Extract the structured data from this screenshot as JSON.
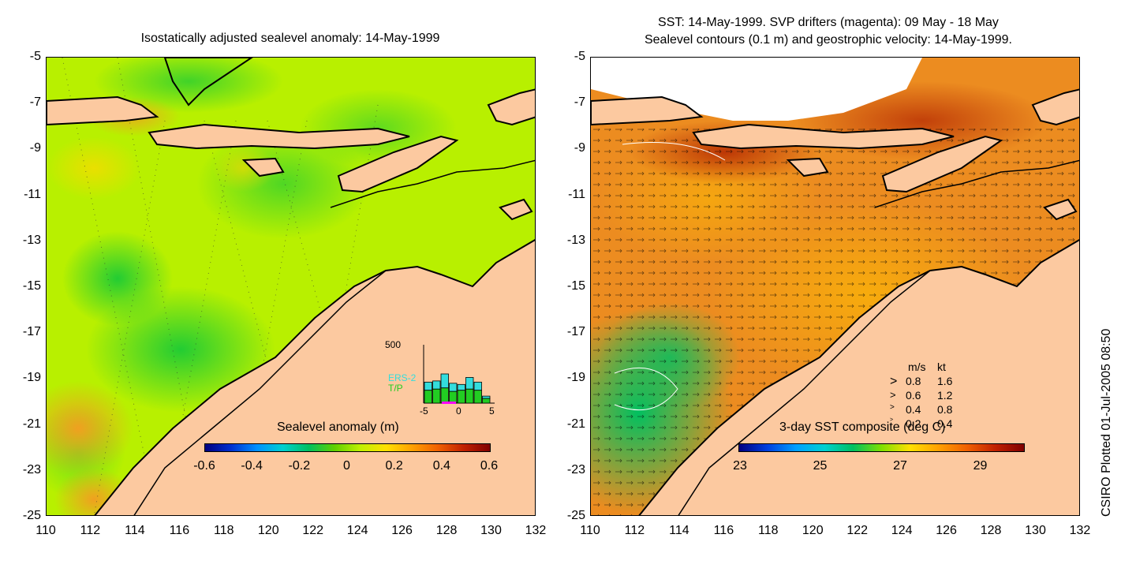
{
  "left_panel": {
    "title": "Isostatically adjusted sealevel anomaly: 14-May-1999",
    "colorbar": {
      "label": "Sealevel anomaly (m)",
      "ticks": [
        "-0.6",
        "-0.4",
        "-0.2",
        "0",
        "0.2",
        "0.4",
        "0.6"
      ]
    },
    "histogram": {
      "max_label": "500",
      "series": [
        "ERS-2",
        "T/P"
      ],
      "x_ticks": [
        "-5",
        "0",
        "5"
      ],
      "ers2_counts": [
        180,
        190,
        250,
        170,
        160,
        220,
        180,
        60
      ],
      "tp_counts": [
        110,
        120,
        130,
        100,
        110,
        120,
        110,
        40
      ],
      "colors": {
        "ers2": "#33dddd",
        "tp": "#22cc22",
        "window": "#ff00ff"
      }
    }
  },
  "right_panel": {
    "title_line1": "SST: 14-May-1999. SVP drifters (magenta): 09 May - 18 May",
    "title_line2": "Sealevel contours (0.1 m) and geostrophic velocity: 14-May-1999.",
    "colorbar": {
      "label": "3-day SST composite (deg C)",
      "ticks": [
        "23",
        "25",
        "27",
        "29"
      ]
    },
    "velocity_legend": {
      "header_ms": "m/s",
      "header_kt": "kt",
      "rows": [
        {
          "ms": "0.8",
          "kt": "1.6"
        },
        {
          "ms": "0.6",
          "kt": "1.2"
        },
        {
          "ms": "0.4",
          "kt": "0.8"
        },
        {
          "ms": "0.2",
          "kt": "0.4"
        }
      ]
    }
  },
  "axes": {
    "y_ticks": [
      "-5",
      "-7",
      "-9",
      "-11",
      "-13",
      "-15",
      "-17",
      "-19",
      "-21",
      "-23",
      "-25"
    ],
    "x_ticks": [
      "110",
      "112",
      "114",
      "116",
      "118",
      "120",
      "122",
      "124",
      "126",
      "128",
      "130",
      "132"
    ]
  },
  "side_note": "CSIRO Plotted 01-Jul-2005 08:50",
  "colors": {
    "land": "#fcc9a0",
    "sea_left": "#b8f000",
    "sst_warm": "#e88820"
  }
}
